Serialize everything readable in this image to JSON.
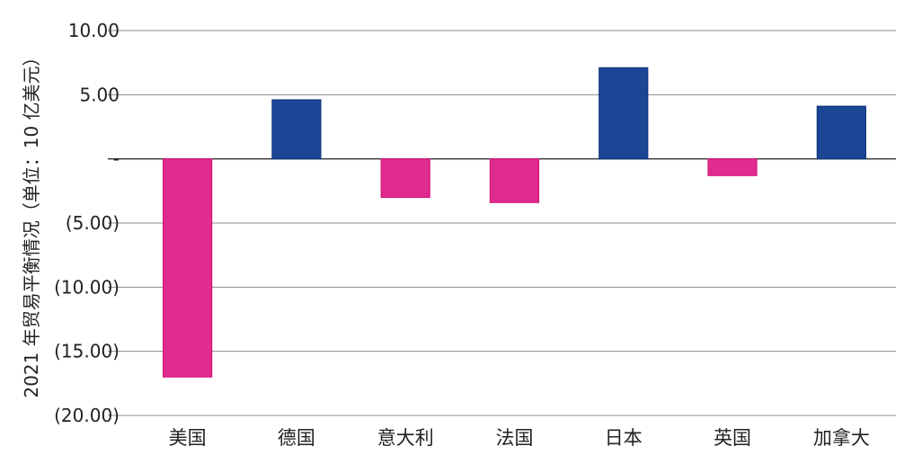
{
  "chart_data": {
    "type": "bar",
    "title": "",
    "xlabel": "",
    "ylabel": "2021 年贸易平衡情况（单位：10 亿美元）",
    "categories": [
      "美国",
      "德国",
      "意大利",
      "法国",
      "日本",
      "英国",
      "加拿大"
    ],
    "values": [
      -17.0,
      4.6,
      -3.0,
      -3.4,
      7.1,
      -1.3,
      4.1
    ],
    "ylim": [
      -20,
      10
    ],
    "yticks": [
      10,
      5,
      0,
      -5,
      -10,
      -15,
      -20
    ],
    "ytick_labels": [
      "10.00",
      "5.00",
      "-",
      "(5.00)",
      "(10.00)",
      "(15.00)",
      "(20.00)"
    ],
    "grid": true,
    "legend": "none",
    "colors": {
      "positive": "#1b4696",
      "positive_edge": "#11357a",
      "negative": "#e02b8f",
      "negative_edge": "#d4147e",
      "grid": "#8c8c8c",
      "zero_line": "#333333"
    }
  }
}
